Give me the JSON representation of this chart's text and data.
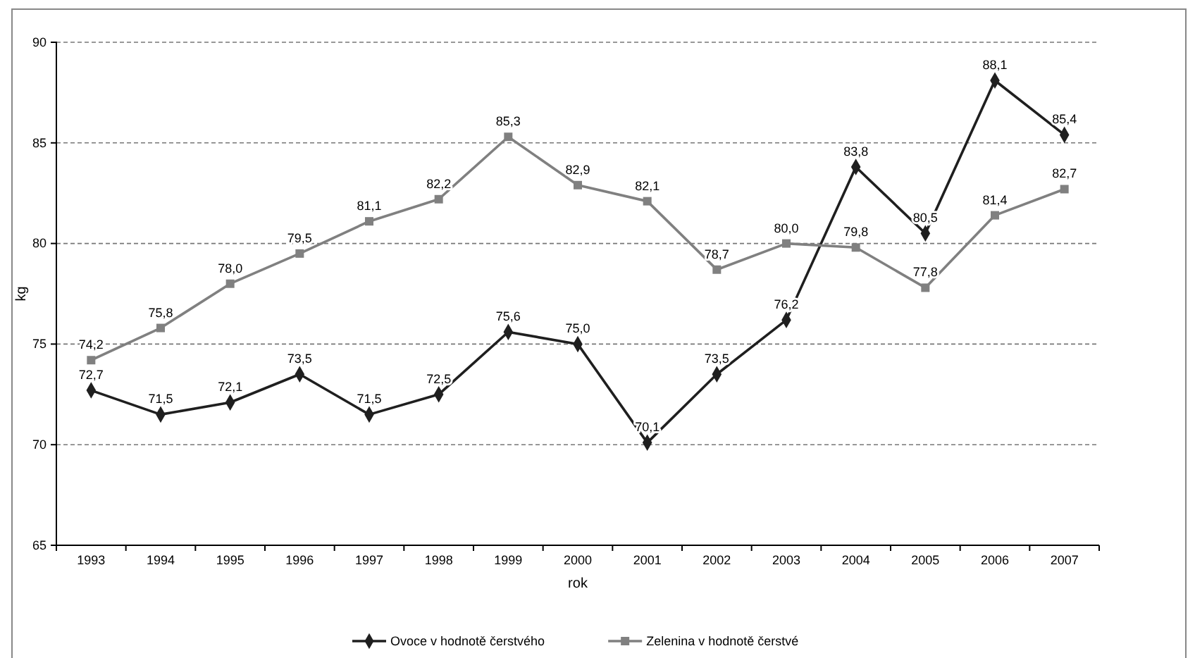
{
  "chart_data": {
    "type": "line",
    "xlabel": "rok",
    "ylabel": "kg",
    "categories": [
      "1993",
      "1994",
      "1995",
      "1996",
      "1997",
      "1998",
      "1999",
      "2000",
      "2001",
      "2002",
      "2003",
      "2004",
      "2005",
      "2006",
      "2007"
    ],
    "series": [
      {
        "name": "Ovoce v hodnotě čerstvého",
        "color": "#1f1f1f",
        "marker": "diamond",
        "values": [
          72.7,
          71.5,
          72.1,
          73.5,
          71.5,
          72.5,
          75.6,
          75.0,
          70.1,
          73.5,
          76.2,
          83.8,
          80.5,
          88.1,
          85.4
        ],
        "value_labels": [
          "72,7",
          "71,5",
          "72,1",
          "73,5",
          "71,5",
          "72,5",
          "75,6",
          "75,0",
          "70,1",
          "73,5",
          "76,2",
          "83,8",
          "80,5",
          "88,1",
          "85,4"
        ]
      },
      {
        "name": "Zelenina v hodnotě čerstvé",
        "color": "#808080",
        "marker": "square",
        "values": [
          74.2,
          75.8,
          78.0,
          79.5,
          81.1,
          82.2,
          85.3,
          82.9,
          82.1,
          78.7,
          80.0,
          79.8,
          77.8,
          81.4,
          82.7
        ],
        "value_labels": [
          "74,2",
          "75,8",
          "78,0",
          "79,5",
          "81,1",
          "82,2",
          "85,3",
          "82,9",
          "82,1",
          "78,7",
          "80,0",
          "79,8",
          "77,8",
          "81,4",
          "82,7"
        ]
      }
    ],
    "ylim": [
      65,
      90
    ],
    "yticks": [
      65,
      70,
      75,
      80,
      85,
      90
    ],
    "grid": "y",
    "line_style": "solid",
    "legend": "bottom"
  }
}
